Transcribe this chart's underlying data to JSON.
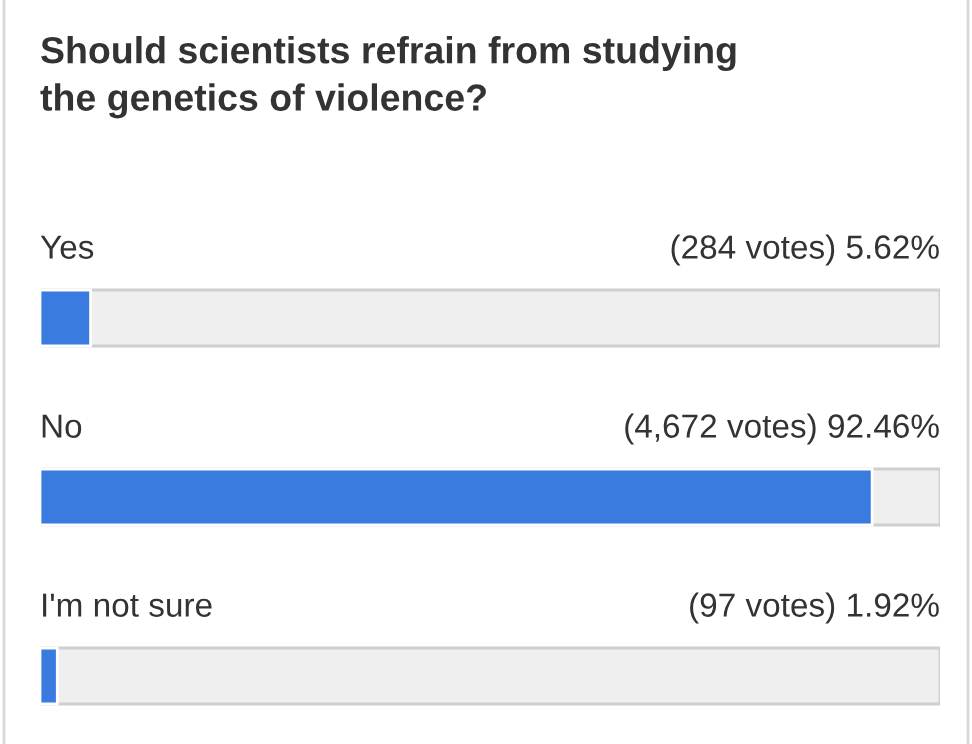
{
  "chart_data": {
    "type": "bar",
    "orientation": "horizontal",
    "title": "Should scientists refrain from studying\nthe genetics of violence?",
    "categories": [
      "Yes",
      "No",
      "I'm not sure"
    ],
    "values": [
      5.62,
      92.46,
      1.92
    ],
    "value_labels": [
      "(284 votes) 5.62%",
      "(4,672 votes) 92.46%",
      "(97 votes) 1.92%"
    ],
    "color": "#3a7be0",
    "xlim": [
      0,
      100
    ],
    "tick_labels": false
  }
}
